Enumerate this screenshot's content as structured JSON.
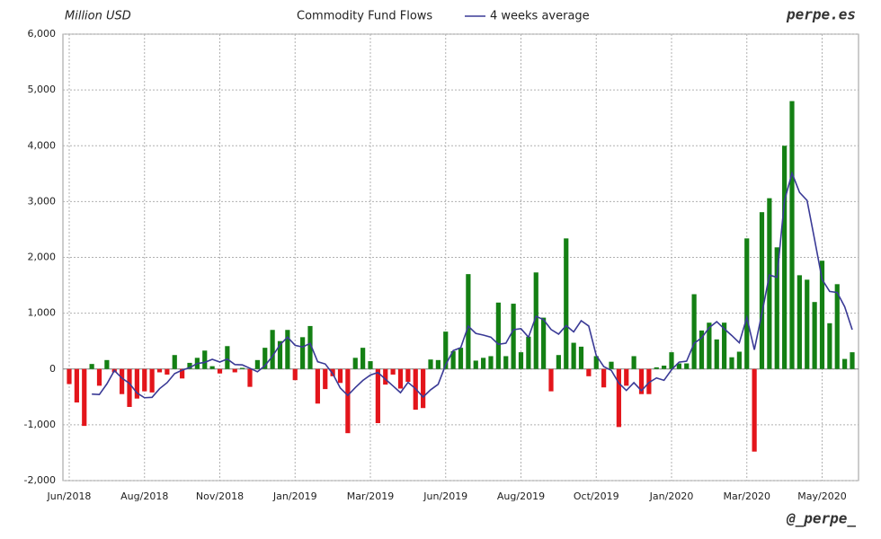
{
  "chart_data": {
    "type": "bar",
    "title": "Commodity Fund Flows",
    "y_label": "Million USD",
    "watermark": "perpe.es",
    "credit": "@_perpe_",
    "categories": [
      "Jun/2018",
      null,
      null,
      null,
      null,
      null,
      null,
      null,
      null,
      null,
      "Aug/2018",
      null,
      null,
      null,
      null,
      null,
      null,
      null,
      null,
      null,
      "Nov/2018",
      null,
      null,
      null,
      null,
      null,
      null,
      null,
      null,
      null,
      "Jan/2019",
      null,
      null,
      null,
      null,
      null,
      null,
      null,
      null,
      null,
      "Mar/2019",
      null,
      null,
      null,
      null,
      null,
      null,
      null,
      null,
      null,
      "Jun/2019",
      null,
      null,
      null,
      null,
      null,
      null,
      null,
      null,
      null,
      "Aug/2019",
      null,
      null,
      null,
      null,
      null,
      null,
      null,
      null,
      null,
      "Oct/2019",
      null,
      null,
      null,
      null,
      null,
      null,
      null,
      null,
      null,
      "Jan/2020",
      null,
      null,
      null,
      null,
      null,
      null,
      null,
      null,
      null,
      "Mar/2020",
      null,
      null,
      null,
      null,
      null,
      null,
      null,
      null,
      null,
      "May/2020",
      null,
      null,
      null,
      null
    ],
    "series": [
      {
        "positive_color": "#148014",
        "negative_color": "#e3151b",
        "values": [
          -270,
          -600,
          -1020,
          90,
          -300,
          160,
          -60,
          -450,
          -680,
          -530,
          -400,
          -420,
          -60,
          -100,
          250,
          -170,
          110,
          200,
          330,
          50,
          -80,
          410,
          -60,
          20,
          -320,
          160,
          380,
          700,
          500,
          700,
          -200,
          570,
          770,
          -620,
          -360,
          -130,
          -250,
          -1150,
          200,
          380,
          140,
          -970,
          -280,
          -100,
          -350,
          -230,
          -730,
          -700,
          170,
          160,
          670,
          320,
          380,
          1700,
          150,
          200,
          230,
          1190,
          230,
          1170,
          300,
          580,
          1730,
          920,
          -400,
          250,
          2340,
          470,
          400,
          -130,
          230,
          -330,
          130,
          -1040,
          -300,
          230,
          -450,
          -450,
          30,
          60,
          300,
          100,
          100,
          1340,
          690,
          830,
          530,
          830,
          210,
          310,
          2340,
          -1480,
          2810,
          3060,
          2180,
          4000,
          4800,
          1680,
          1600,
          1200,
          1940,
          820,
          1520,
          180,
          300
        ]
      },
      {
        "name": "4 weeks average",
        "type": "line",
        "color": "#3a3a96",
        "values": [
          null,
          null,
          null,
          -450,
          -458,
          -268,
          -28,
          -163,
          -258,
          -430,
          -515,
          -508,
          -353,
          -245,
          -83,
          -20,
          23,
          98,
          118,
          173,
          125,
          178,
          80,
          73,
          13,
          -50,
          60,
          230,
          435,
          570,
          425,
          393,
          460,
          130,
          90,
          -85,
          -340,
          -473,
          -333,
          -205,
          -108,
          -63,
          -183,
          -303,
          -425,
          -240,
          -353,
          -503,
          -373,
          -275,
          75,
          330,
          383,
          768,
          638,
          608,
          570,
          443,
          463,
          705,
          723,
          570,
          945,
          883,
          708,
          625,
          778,
          665,
          865,
          770,
          243,
          43,
          -25,
          -253,
          -385,
          -245,
          -390,
          -243,
          -160,
          -203,
          -15,
          123,
          140,
          460,
          558,
          740,
          848,
          720,
          600,
          470,
          923,
          345,
          995,
          1683,
          1643,
          3013,
          3510,
          3165,
          3020,
          2320,
          1605,
          1390,
          1370,
          1115,
          705
        ]
      }
    ],
    "ylim": [
      -2000,
      6000
    ],
    "yticks": [
      {
        "value": -2000,
        "label": "-2,000"
      },
      {
        "value": -1000,
        "label": "-1,000"
      },
      0,
      {
        "value": 1000,
        "label": "1,000"
      },
      {
        "value": 2000,
        "label": "2,000"
      },
      {
        "value": 3000,
        "label": "3,000"
      },
      {
        "value": 4000,
        "label": "4,000"
      },
      {
        "value": 5000,
        "label": "5,000"
      },
      {
        "value": 6000,
        "label": "6,000"
      }
    ],
    "grid": true
  }
}
